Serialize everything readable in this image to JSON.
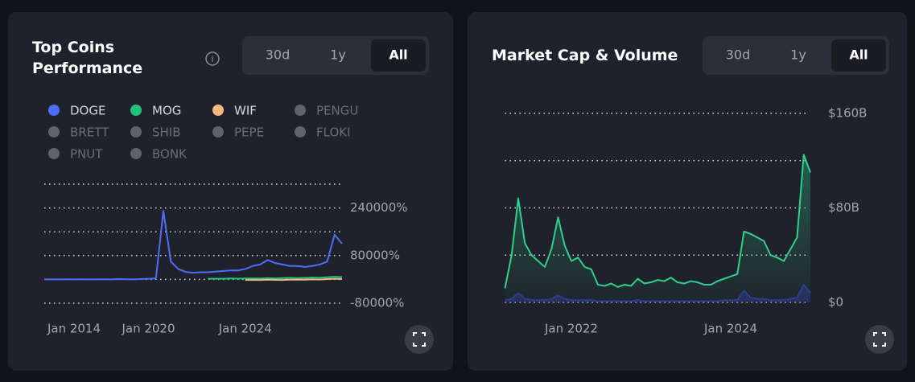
{
  "chart_data": [
    {
      "type": "line",
      "title": "Top Coins Performance",
      "tabs": [
        "30d",
        "1y",
        "All"
      ],
      "active_tab": "All",
      "categories": [
        null,
        null,
        null,
        null,
        "Jan 2014",
        null,
        null,
        null,
        null,
        null,
        null,
        null,
        null,
        null,
        "Jan 2020",
        null,
        null,
        null,
        null,
        null,
        null,
        null,
        null,
        null,
        null,
        null,
        null,
        "Jan 2024",
        null,
        null,
        null,
        null,
        null,
        null,
        null,
        null,
        null,
        null,
        null,
        null,
        null
      ],
      "series": [
        {
          "name": "DOGE",
          "color": "#4f6ef7",
          "values": [
            0,
            0,
            0,
            500,
            0,
            500,
            0,
            0,
            500,
            0,
            1000,
            500,
            0,
            1000,
            2000,
            3000,
            230000,
            60000,
            35000,
            25000,
            22000,
            24000,
            24000,
            26000,
            28000,
            30000,
            30000,
            35000,
            45000,
            50000,
            65000,
            55000,
            50000,
            45000,
            45000,
            42000,
            45000,
            50000,
            60000,
            150000,
            120000
          ]
        },
        {
          "name": "MOG",
          "color": "#22c37e",
          "values": [
            null,
            null,
            null,
            null,
            null,
            null,
            null,
            null,
            null,
            null,
            null,
            null,
            null,
            null,
            null,
            null,
            null,
            null,
            null,
            null,
            null,
            null,
            2000,
            2500,
            2000,
            3000,
            2500,
            3000,
            3500,
            3000,
            4000,
            3500,
            4000,
            5000,
            4500,
            5000,
            6000,
            5500,
            7000,
            9000,
            8000
          ]
        },
        {
          "name": "WIF",
          "color": "#f5b97a",
          "values": [
            null,
            null,
            null,
            null,
            null,
            null,
            null,
            null,
            null,
            null,
            null,
            null,
            null,
            null,
            null,
            null,
            null,
            null,
            null,
            null,
            null,
            null,
            null,
            null,
            null,
            null,
            null,
            -2000,
            -1500,
            -2000,
            -1000,
            -1500,
            -2000,
            -1000,
            -500,
            -1000,
            0,
            -500,
            1000,
            2000,
            1500
          ]
        }
      ],
      "hidden_series": [
        "PENGU",
        "BRETT",
        "SHIB",
        "PEPE",
        "FLOKI",
        "PNUT",
        "BONK"
      ],
      "ylim": [
        -80000,
        320000
      ],
      "yticks": [
        {
          "value": -80000,
          "label": "-80000%"
        },
        {
          "value": 0,
          "label": null
        },
        {
          "value": 80000,
          "label": "80000%"
        },
        {
          "value": 160000,
          "label": null
        },
        {
          "value": 240000,
          "label": "240000%"
        },
        {
          "value": 320000,
          "label": null
        }
      ],
      "grid": true
    },
    {
      "type": "area",
      "title": "Market Cap & Volume",
      "tabs": [
        "30d",
        "1y",
        "All"
      ],
      "active_tab": "All",
      "categories": [
        null,
        null,
        null,
        null,
        null,
        null,
        null,
        null,
        null,
        null,
        "Jan 2022",
        null,
        null,
        null,
        null,
        null,
        null,
        null,
        null,
        null,
        null,
        null,
        null,
        null,
        null,
        null,
        null,
        null,
        null,
        null,
        null,
        null,
        null,
        null,
        "Jan 2024",
        null,
        null,
        null,
        null,
        null,
        null,
        null,
        null,
        null,
        null,
        null,
        null
      ],
      "series": [
        {
          "color": "#2fd08c",
          "values": [
            12,
            40,
            88,
            50,
            40,
            35,
            30,
            45,
            72,
            48,
            35,
            38,
            30,
            28,
            15,
            14,
            16,
            13,
            15,
            14,
            20,
            16,
            17,
            19,
            18,
            21,
            17,
            16,
            18,
            17,
            15,
            15,
            18,
            20,
            22,
            24,
            60,
            58,
            55,
            52,
            40,
            38,
            35,
            45,
            55,
            125,
            110
          ]
        },
        {
          "color": "#2b3a8a",
          "values": [
            2,
            3,
            8,
            3,
            2,
            2,
            2,
            3,
            6,
            3,
            2,
            2,
            2,
            2,
            1,
            1,
            1,
            1,
            1,
            1,
            2,
            1,
            1,
            1,
            1,
            1,
            1,
            1,
            1,
            1,
            1,
            1,
            1,
            2,
            2,
            2,
            10,
            4,
            3,
            3,
            2,
            2,
            2,
            3,
            4,
            15,
            8
          ]
        }
      ],
      "ylim": [
        0,
        160
      ],
      "yticks": [
        {
          "value": 0,
          "label": "$0"
        },
        {
          "value": 40,
          "label": null
        },
        {
          "value": 80,
          "label": "$80B"
        },
        {
          "value": 120,
          "label": null
        },
        {
          "value": 160,
          "label": "$160B"
        }
      ],
      "grid": true
    }
  ]
}
